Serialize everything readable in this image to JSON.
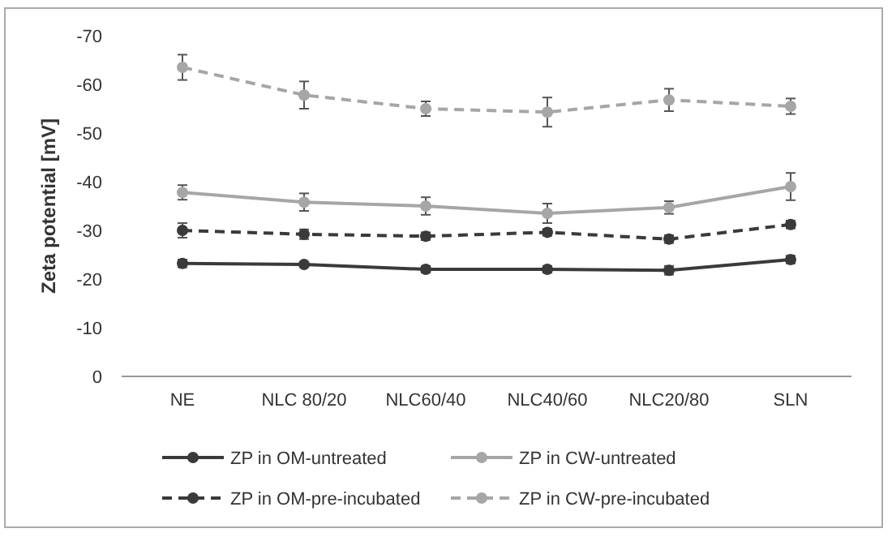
{
  "chart_data": {
    "type": "line",
    "ylabel": "Zeta potential [mV]",
    "categories": [
      "NE",
      "NLC 80/20",
      "NLC60/40",
      "NLC40/60",
      "NLC20/80",
      "SLN"
    ],
    "ylim": [
      0,
      -70
    ],
    "yticks": [
      0,
      -10,
      -20,
      -30,
      -40,
      -50,
      -60,
      -70
    ],
    "grid": false,
    "legend": "bottom",
    "marker": "circle",
    "series": [
      {
        "name": "ZP in OM-untreated",
        "color": "#3a3a3a",
        "line_style": "solid",
        "values": [
          -23.2,
          -23,
          -22,
          -22,
          -21.8,
          -24
        ],
        "errors": [
          0.8,
          0.5,
          0.7,
          0.7,
          0.9,
          0.8
        ]
      },
      {
        "name": "ZP in CW-untreated",
        "color": "#a6a6a6",
        "line_style": "solid",
        "values": [
          -37.8,
          -35.8,
          -35,
          -33.5,
          -34.7,
          -39
        ],
        "errors": [
          1.5,
          1.8,
          1.8,
          2,
          1.3,
          2.8
        ]
      },
      {
        "name": "ZP in OM-pre-incubated",
        "color": "#3a3a3a",
        "line_style": "dashed",
        "values": [
          -30,
          -29.2,
          -28.8,
          -29.6,
          -28.2,
          -31.2
        ],
        "errors": [
          1.5,
          1,
          0.8,
          0.7,
          0.8,
          0.8
        ]
      },
      {
        "name": "ZP in CW-pre-incubated",
        "color": "#a6a6a6",
        "line_style": "dashed",
        "values": [
          -63.5,
          -57.8,
          -55,
          -54.3,
          -56.8,
          -55.5
        ],
        "errors": [
          2.6,
          2.8,
          1.5,
          3,
          2.3,
          1.6
        ]
      }
    ]
  }
}
